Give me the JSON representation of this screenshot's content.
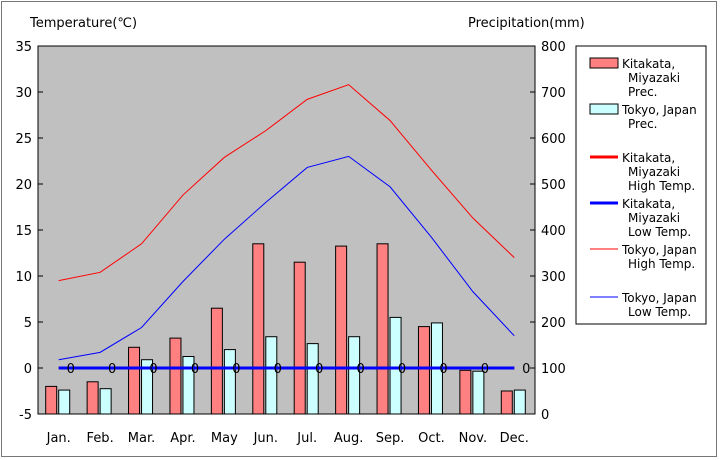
{
  "chart_data": {
    "type": "bar",
    "left_axis_title": "Temperature(℃)",
    "right_axis_title": "Precipitation(mm)",
    "categories": [
      "Jan.",
      "Feb.",
      "Mar.",
      "Apr.",
      "May",
      "Jun.",
      "Jul.",
      "Aug.",
      "Sep.",
      "Oct.",
      "Nov.",
      "Dec."
    ],
    "left_ticks": [
      "35",
      "30",
      "25",
      "20",
      "15",
      "10",
      "5",
      "0",
      "-5"
    ],
    "right_ticks": [
      "800",
      "700",
      "600",
      "500",
      "400",
      "300",
      "200",
      "100",
      "0"
    ],
    "ylim_temperature": [
      -5,
      35
    ],
    "ylim_precipitation": [
      0,
      800
    ],
    "grid": false,
    "plot_background": "#c0c0c0",
    "bar_series": [
      {
        "name": "Kitakata, Miyazaki Prec.",
        "legend_lines": [
          "Kitakata,",
          "Miyazaki",
          "Prec."
        ],
        "color": "#ff8080",
        "values": [
          60,
          70,
          145,
          165,
          230,
          370,
          330,
          365,
          370,
          190,
          95,
          50
        ]
      },
      {
        "name": "Tokyo, Japan Prec.",
        "legend_lines": [
          "Tokyo, Japan",
          "Prec."
        ],
        "color": "#ccffff",
        "values": [
          52,
          55,
          118,
          125,
          140,
          168,
          153,
          168,
          210,
          198,
          93,
          52
        ]
      }
    ],
    "line_series": [
      {
        "name": "Kitakata, Miyazaki High Temp.",
        "legend_lines": [
          "Kitakata,",
          "Miyazaki",
          "High Temp."
        ],
        "color": "#ff0000",
        "width": "thick",
        "values": [
          0,
          0,
          0,
          0,
          0,
          0,
          0,
          0,
          0,
          0,
          0,
          0
        ]
      },
      {
        "name": "Kitakata, Miyazaki Low Temp.",
        "legend_lines": [
          "Kitakata,",
          "Miyazaki",
          "Low Temp."
        ],
        "color": "#0000ff",
        "width": "thick",
        "values": [
          0,
          0,
          0,
          0,
          0,
          0,
          0,
          0,
          0,
          0,
          0,
          0
        ]
      },
      {
        "name": "Tokyo, Japan High Temp.",
        "legend_lines": [
          "Tokyo, Japan",
          "High Temp."
        ],
        "color": "#ff0000",
        "width": "thin",
        "values": [
          9.5,
          10.4,
          13.5,
          18.8,
          22.9,
          25.8,
          29.2,
          30.8,
          26.9,
          21.5,
          16.3,
          12.0
        ]
      },
      {
        "name": "Tokyo, Japan Low Temp.",
        "legend_lines": [
          "Tokyo, Japan",
          "Low Temp."
        ],
        "color": "#0000ff",
        "width": "thin",
        "values": [
          0.9,
          1.7,
          4.4,
          9.4,
          14.0,
          18.0,
          21.8,
          23.0,
          19.7,
          14.2,
          8.3,
          3.5
        ]
      }
    ],
    "data_labels": {
      "series": "Kitakata, Miyazaki High Temp.",
      "values": [
        "0",
        "0",
        "0",
        "0",
        "0",
        "0",
        "0",
        "0",
        "0",
        "0",
        "0",
        "0"
      ]
    }
  }
}
